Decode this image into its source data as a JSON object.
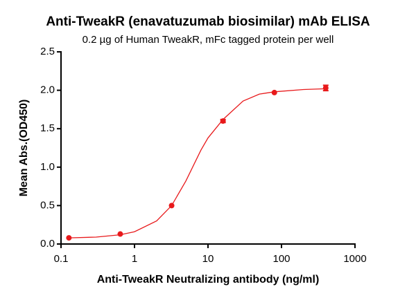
{
  "chart_data": {
    "type": "scatter",
    "title": "Anti-TweakR (enavatuzumab biosimilar) mAb ELISA",
    "subtitle": "0.2 µg of Human TweakR, mFc tagged protein per well",
    "x_label": "Anti-TweakR Neutralizing antibody (ng/ml)",
    "y_label": "Mean Abs.(OD450)",
    "x_scale": "log",
    "color": "#e8191b",
    "x": [
      0.128,
      0.64,
      3.2,
      16,
      80,
      400
    ],
    "values": [
      0.08,
      0.13,
      0.5,
      1.6,
      1.97,
      2.03
    ],
    "errors": [
      0,
      0,
      0,
      0.02,
      0,
      0.035
    ],
    "curve": {
      "x": [
        0.128,
        0.3,
        0.64,
        1,
        2,
        3.2,
        5,
        8,
        10,
        16,
        30,
        50,
        80,
        200,
        400
      ],
      "values": [
        0.08,
        0.09,
        0.12,
        0.16,
        0.3,
        0.5,
        0.82,
        1.22,
        1.38,
        1.62,
        1.86,
        1.95,
        1.98,
        2.01,
        2.02
      ]
    },
    "xlim": [
      0.1,
      1000
    ],
    "xticks": [
      0.1,
      1,
      10,
      100,
      1000
    ],
    "ylim": [
      0,
      2.5
    ],
    "yticks": [
      {
        "value": 0,
        "label": "0.0"
      },
      0.5,
      {
        "value": 1,
        "label": "1.0"
      },
      1.5,
      {
        "value": 2,
        "label": "2.0"
      },
      2.5
    ]
  }
}
